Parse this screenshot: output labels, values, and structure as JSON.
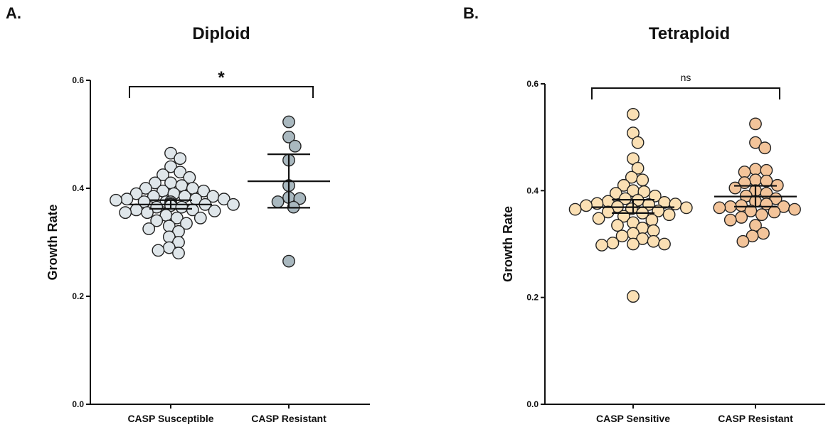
{
  "chart_data": [
    {
      "type": "scatter",
      "panel": "A.",
      "title": "Diploid",
      "ylabel": "Growth Rate",
      "xlabel": "",
      "ylim": [
        0.0,
        0.6
      ],
      "yticks": [
        "0.0",
        "0.2",
        "0.4",
        "0.6"
      ],
      "significance": "*",
      "marker_color": "#dfe6ea",
      "categories": [
        {
          "label": "CASP Susceptible",
          "mean": 0.37,
          "error_low": 0.362,
          "error_high": 0.378,
          "color": "#dfe6ea",
          "values": [
            0.465,
            0.455,
            0.44,
            0.43,
            0.425,
            0.42,
            0.41,
            0.41,
            0.405,
            0.4,
            0.4,
            0.395,
            0.395,
            0.39,
            0.39,
            0.385,
            0.385,
            0.385,
            0.38,
            0.38,
            0.38,
            0.378,
            0.375,
            0.375,
            0.375,
            0.372,
            0.37,
            0.37,
            0.37,
            0.368,
            0.365,
            0.365,
            0.36,
            0.36,
            0.358,
            0.355,
            0.355,
            0.35,
            0.345,
            0.345,
            0.34,
            0.335,
            0.33,
            0.325,
            0.32,
            0.31,
            0.3,
            0.29,
            0.285,
            0.28
          ]
        },
        {
          "label": "CASP Resistant",
          "mean": 0.413,
          "error_low": 0.364,
          "error_high": 0.463,
          "color": "#a9b8bf",
          "values": [
            0.523,
            0.495,
            0.478,
            0.452,
            0.405,
            0.383,
            0.381,
            0.375,
            0.365,
            0.265
          ]
        }
      ]
    },
    {
      "type": "scatter",
      "panel": "B.",
      "title": "Tetraploid",
      "ylabel": "Growth Rate",
      "xlabel": "",
      "ylim": [
        0.0,
        0.6
      ],
      "yticks": [
        "0.0",
        "0.2",
        "0.4",
        "0.6"
      ],
      "significance": "ns",
      "categories": [
        {
          "label": "CASP Sensitive",
          "mean": 0.369,
          "error_low": 0.358,
          "error_high": 0.383,
          "color": "#fbe0b4",
          "values": [
            0.543,
            0.508,
            0.49,
            0.46,
            0.442,
            0.425,
            0.42,
            0.41,
            0.4,
            0.398,
            0.395,
            0.39,
            0.385,
            0.382,
            0.38,
            0.378,
            0.376,
            0.375,
            0.374,
            0.372,
            0.37,
            0.368,
            0.366,
            0.365,
            0.362,
            0.36,
            0.358,
            0.355,
            0.352,
            0.348,
            0.345,
            0.34,
            0.335,
            0.33,
            0.325,
            0.32,
            0.315,
            0.31,
            0.305,
            0.302,
            0.3,
            0.3,
            0.298,
            0.202
          ]
        },
        {
          "label": "CASP Resistant",
          "mean": 0.389,
          "error_low": 0.37,
          "error_high": 0.409,
          "color": "#f3c49a",
          "values": [
            0.525,
            0.49,
            0.48,
            0.44,
            0.438,
            0.435,
            0.42,
            0.418,
            0.415,
            0.41,
            0.405,
            0.4,
            0.395,
            0.39,
            0.385,
            0.38,
            0.375,
            0.372,
            0.37,
            0.37,
            0.368,
            0.365,
            0.362,
            0.36,
            0.355,
            0.35,
            0.345,
            0.335,
            0.32,
            0.315,
            0.305
          ]
        }
      ]
    }
  ]
}
